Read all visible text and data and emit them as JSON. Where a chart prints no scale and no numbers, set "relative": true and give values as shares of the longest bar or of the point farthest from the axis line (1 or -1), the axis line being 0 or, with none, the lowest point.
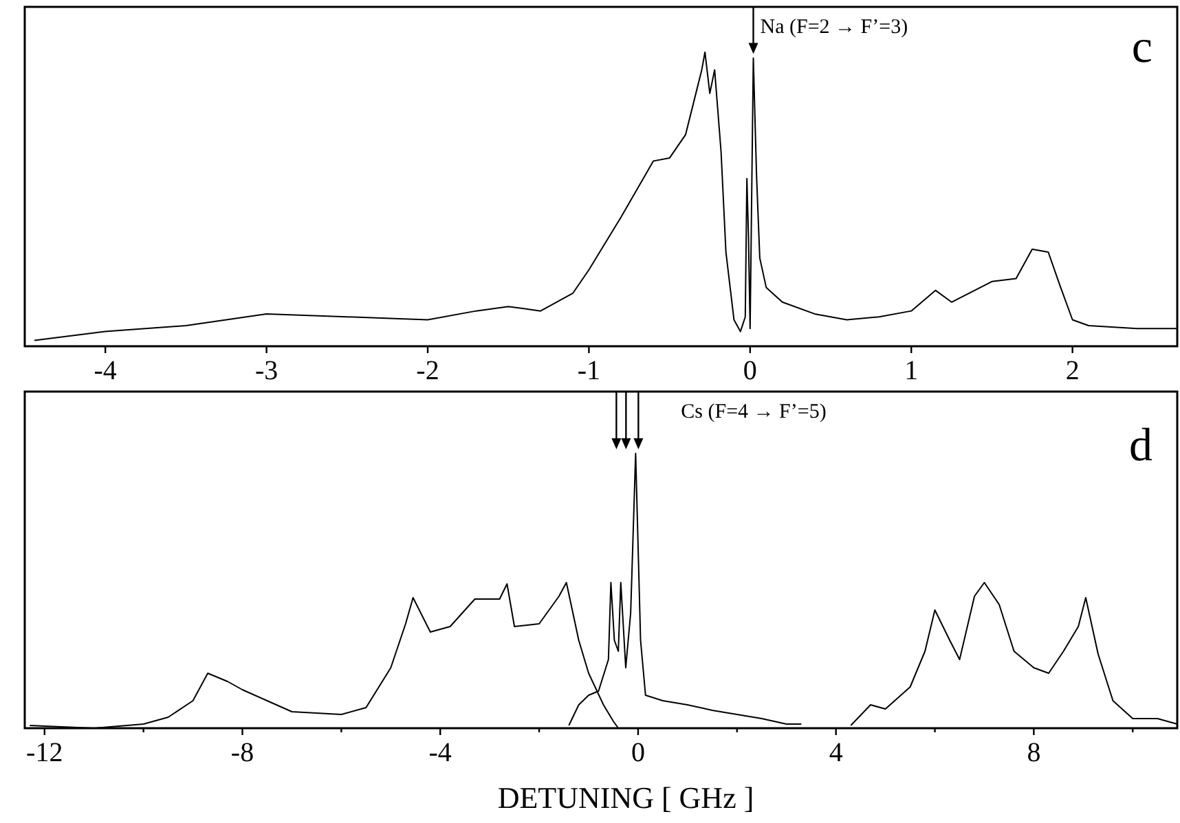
{
  "chart_data": [
    {
      "type": "line",
      "title": "c",
      "relative": true,
      "xlim": [
        -4.5,
        2.65
      ],
      "xticks": [
        -4,
        -3,
        -2,
        -1,
        0,
        1,
        2
      ],
      "tick_labels": "x",
      "series": [
        {
          "color": "#000000",
          "x": [
            -4.44,
            -4,
            -3.5,
            -3,
            -2.5,
            -2,
            -1.7,
            -1.5,
            -1.3,
            -1.1,
            -1,
            -0.8,
            -0.6,
            -0.5,
            -0.4,
            -0.3,
            -0.28,
            -0.25,
            -0.22,
            -0.18,
            -0.15,
            -0.1,
            -0.06,
            -0.03,
            -0.02,
            -0.01,
            0,
            0.02,
            0.04,
            0.06,
            0.1,
            0.2,
            0.4,
            0.6,
            0.8,
            1,
            1.15,
            1.25,
            1.5,
            1.65,
            1.75,
            1.85,
            1.92,
            2,
            2.1,
            2.4,
            2.65
          ],
          "values": [
            0.02,
            0.05,
            0.07,
            0.11,
            0.1,
            0.09,
            0.12,
            0.135,
            0.12,
            0.18,
            0.26,
            0.44,
            0.63,
            0.64,
            0.72,
            0.94,
            1,
            0.86,
            0.94,
            0.66,
            0.32,
            0.09,
            0.05,
            0.1,
            0.57,
            0.37,
            0.06,
            0.98,
            0.58,
            0.3,
            0.2,
            0.15,
            0.11,
            0.09,
            0.1,
            0.12,
            0.19,
            0.15,
            0.22,
            0.23,
            0.33,
            0.32,
            0.21,
            0.09,
            0.07,
            0.06,
            0.06
          ]
        }
      ],
      "annotations": [
        {
          "text": "Na (F=2 → F’=3)",
          "x": 0.02,
          "y": 0.98
        }
      ]
    },
    {
      "type": "line",
      "title": "d",
      "xlabel": "DETUNING [ GHz ]",
      "relative": true,
      "xlim": [
        -12.4,
        10.9
      ],
      "xticks": [
        -12,
        {
          "value": -10,
          "label": null
        },
        -8,
        {
          "value": -6,
          "label": null
        },
        -4,
        {
          "value": -2,
          "label": null
        },
        0,
        {
          "value": 2,
          "label": null
        },
        4,
        {
          "value": 6,
          "label": null
        },
        8,
        {
          "value": 10,
          "label": null
        }
      ],
      "tick_labels": "x",
      "series": [
        {
          "color": "#000000",
          "x": [
            -12.3,
            -11,
            -10,
            -9.5,
            -9,
            -8.7,
            -8.3,
            -8,
            -7.5,
            -7,
            -6,
            -5.5,
            -5,
            -4.7,
            -4.55,
            -4.2,
            -3.8,
            -3.3,
            -2.8,
            -2.65,
            -2.5,
            -2,
            -1.6,
            -1.45,
            -1.2,
            -1,
            -0.7,
            -0.5,
            -0.4
          ],
          "values": [
            0.01,
            0,
            0.015,
            0.04,
            0.1,
            0.2,
            0.17,
            0.14,
            0.1,
            0.06,
            0.05,
            0.075,
            0.22,
            0.38,
            0.475,
            0.35,
            0.37,
            0.47,
            0.47,
            0.525,
            0.37,
            0.38,
            0.48,
            0.53,
            0.32,
            0.2,
            0.085,
            0.025,
            0
          ]
        },
        {
          "color": "#000000",
          "x": [
            -1.4,
            -1.2,
            -1,
            -0.8,
            -0.6,
            -0.55,
            -0.48,
            -0.4,
            -0.35,
            -0.25,
            -0.15,
            -0.05,
            0.05,
            0.15,
            0.5,
            1,
            1.5,
            2,
            2.5,
            3,
            3.3,
            3.8,
            4.3,
            4.7,
            5,
            5.5,
            5.8,
            6,
            6.3,
            6.5,
            6.8,
            7,
            7.3,
            7.6,
            8,
            8.3,
            8.6,
            8.9,
            9.05,
            9.3,
            9.6,
            10,
            10.5,
            10.9
          ],
          "values": [
            0.01,
            0.085,
            0.12,
            0.135,
            0.25,
            0.53,
            0.32,
            0.28,
            0.53,
            0.22,
            0.42,
            1,
            0.32,
            0.12,
            0.1,
            0.085,
            0.065,
            0.05,
            0.035,
            0.015,
            0.015,
            null,
            0.01,
            0.085,
            0.07,
            0.15,
            0.28,
            0.43,
            0.32,
            0.25,
            0.48,
            0.53,
            0.45,
            0.28,
            0.22,
            0.2,
            0.28,
            0.37,
            0.475,
            0.27,
            0.1,
            0.035,
            0.035,
            0.015
          ]
        }
      ],
      "annotations": [
        {
          "text": "Cs (F=4 → F’=5)",
          "x": -0.05,
          "y": 1
        }
      ]
    }
  ]
}
